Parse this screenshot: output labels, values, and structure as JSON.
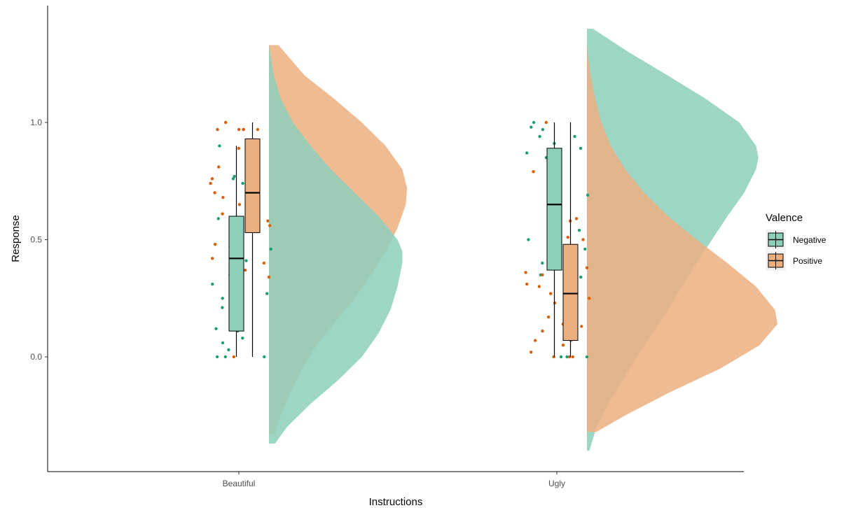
{
  "chart_data": {
    "type": "raincloud",
    "xlabel": "Instructions",
    "ylabel": "Response",
    "categories": [
      "Beautiful",
      "Ugly"
    ],
    "y_ticks": [
      {
        "value": 0.0,
        "label": "0.0"
      },
      {
        "value": 0.5,
        "label": "0.5"
      },
      {
        "value": 1.0,
        "label": "1.0"
      }
    ],
    "ylim": [
      -0.42,
      1.48
    ],
    "grid": false,
    "legend_position": "right",
    "legend": {
      "title": "Valence",
      "entries": [
        {
          "name": "Negative",
          "color": "#1b9e77",
          "fill": "#8dcfbb"
        },
        {
          "name": "Positive",
          "color": "#d95f02",
          "fill": "#ecaf80"
        }
      ]
    },
    "groups": [
      {
        "category": "Beautiful",
        "boxes": [
          {
            "series": "Negative",
            "whisker_low": 0.0,
            "q1": 0.11,
            "median": 0.42,
            "q3": 0.6,
            "whisker_high": 0.9
          },
          {
            "series": "Positive",
            "whisker_low": 0.0,
            "q1": 0.53,
            "median": 0.7,
            "q3": 0.93,
            "whisker_high": 1.0
          }
        ],
        "densities": [
          {
            "series": "Positive",
            "y": [
              -0.33,
              -0.25,
              -0.15,
              -0.05,
              0.05,
              0.15,
              0.25,
              0.35,
              0.45,
              0.55,
              0.65,
              0.72,
              0.8,
              0.9,
              1.0,
              1.1,
              1.2,
              1.33
            ],
            "density": [
              0.05,
              0.1,
              0.18,
              0.28,
              0.4,
              0.56,
              0.72,
              0.86,
              0.98,
              1.08,
              1.15,
              1.16,
              1.12,
              0.98,
              0.78,
              0.55,
              0.3,
              0.08
            ]
          },
          {
            "series": "Negative",
            "y": [
              -0.37,
              -0.3,
              -0.2,
              -0.1,
              0.0,
              0.1,
              0.2,
              0.3,
              0.4,
              0.45,
              0.5,
              0.6,
              0.7,
              0.8,
              0.9,
              1.0,
              1.1,
              1.2,
              1.33
            ],
            "density": [
              0.05,
              0.15,
              0.35,
              0.58,
              0.78,
              0.92,
              1.02,
              1.08,
              1.12,
              1.12,
              1.08,
              0.92,
              0.72,
              0.52,
              0.35,
              0.2,
              0.1,
              0.04,
              0.0
            ]
          }
        ],
        "points": [
          {
            "series": "Positive",
            "values": [
              0.97,
              0.97,
              0.7,
              0.68,
              0.57,
              0.44,
              0.42,
              0.4,
              0.37,
              0.0,
              1.0,
              0.97,
              0.82,
              0.76,
              0.65,
              0.61,
              0.57,
              0.97,
              0.97,
              0.89,
              0.81,
              0.74,
              0.58,
              0.56,
              0.48,
              0.44,
              0.34
            ]
          },
          {
            "series": "Negative",
            "values": [
              0.9,
              0.77,
              0.74,
              0.68,
              0.0,
              0.59,
              0.46,
              0.42,
              0.21,
              0.08,
              0.03,
              0.0,
              0.7,
              0.47,
              0.35,
              0.31,
              0.27,
              0.06,
              0.0,
              0.11,
              0.25,
              0.41,
              0.76,
              0.72,
              0.87,
              0.12
            ]
          }
        ]
      },
      {
        "category": "Ugly",
        "boxes": [
          {
            "series": "Negative",
            "whisker_low": 0.0,
            "q1": 0.37,
            "median": 0.65,
            "q3": 0.89,
            "whisker_high": 1.0
          },
          {
            "series": "Positive",
            "whisker_low": 0.0,
            "q1": 0.07,
            "median": 0.27,
            "q3": 0.48,
            "whisker_high": 1.0
          }
        ],
        "densities": [
          {
            "series": "Negative",
            "y": [
              -0.4,
              -0.3,
              -0.2,
              -0.1,
              0.0,
              0.1,
              0.2,
              0.3,
              0.4,
              0.5,
              0.6,
              0.7,
              0.8,
              0.85,
              0.9,
              1.0,
              1.1,
              1.2,
              1.3,
              1.4
            ],
            "density": [
              0.02,
              0.08,
              0.18,
              0.3,
              0.42,
              0.55,
              0.68,
              0.8,
              0.92,
              1.05,
              1.18,
              1.32,
              1.42,
              1.44,
              1.42,
              1.28,
              1.0,
              0.68,
              0.35,
              0.05
            ]
          },
          {
            "series": "Positive",
            "y": [
              -0.32,
              -0.25,
              -0.15,
              -0.05,
              0.05,
              0.14,
              0.2,
              0.3,
              0.4,
              0.5,
              0.6,
              0.7,
              0.8,
              0.9,
              1.0,
              1.1,
              1.2,
              1.33
            ],
            "density": [
              0.08,
              0.32,
              0.7,
              1.12,
              1.45,
              1.6,
              1.58,
              1.42,
              1.18,
              0.92,
              0.68,
              0.48,
              0.32,
              0.2,
              0.12,
              0.07,
              0.03,
              0.0
            ]
          }
        ],
        "points": [
          {
            "series": "Negative",
            "values": [
              0.94,
              0.91,
              0.98,
              0.5,
              0.47,
              0.37,
              0.0,
              0.0,
              0.85,
              0.84,
              0.68,
              0.58,
              0.54,
              0.44,
              0.42,
              0.4,
              0.35,
              0.3,
              1.0,
              0.97,
              0.94,
              0.89,
              0.69,
              0.46,
              0.34,
              0.21,
              0.08,
              0.0,
              0.87
            ]
          },
          {
            "series": "Positive",
            "values": [
              1.0,
              0.44,
              0.3,
              0.27,
              0.0,
              0.0,
              0.11,
              0.38,
              0.36,
              0.17,
              0.14,
              0.0,
              0.02,
              0.25,
              0.23,
              0.13,
              0.05,
              0.83,
              0.79,
              0.59,
              0.5,
              0.35,
              0.31,
              0.07,
              0.07,
              0.58,
              0.51
            ]
          }
        ]
      }
    ]
  }
}
